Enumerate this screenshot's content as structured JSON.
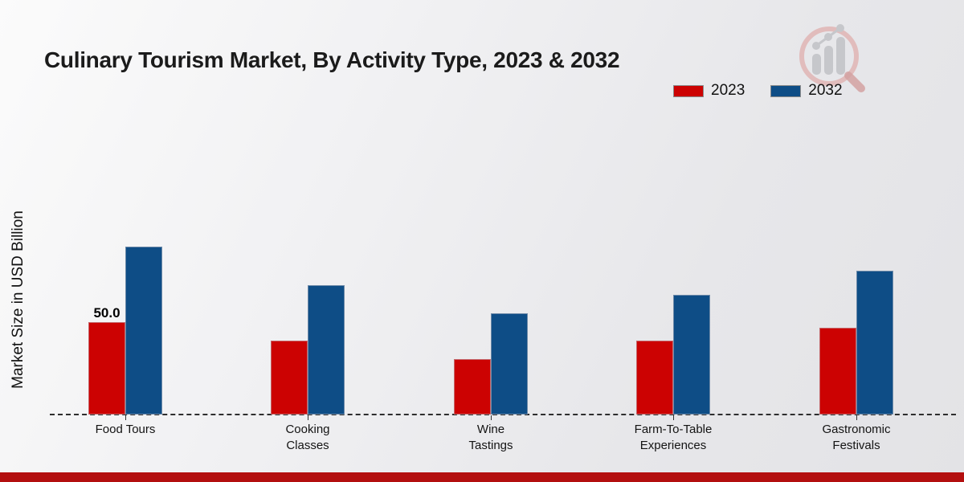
{
  "title": "Culinary Tourism Market, By Activity Type, 2023 & 2032",
  "colors": {
    "series_2023": "#cc0202",
    "series_2032": "#0e4d86",
    "footer_bar": "#b30f0f",
    "baseline": "#2e2e2e"
  },
  "chart_data": {
    "type": "bar",
    "title": "Culinary Tourism Market, By Activity Type, 2023 & 2032",
    "xlabel": "",
    "ylabel": "Market Size in USD Billion",
    "categories": [
      "Food Tours",
      "Cooking\nClasses",
      "Wine\nTastings",
      "Farm-To-Table\nExperiences",
      "Gastronomic\nFestivals"
    ],
    "series": [
      {
        "name": "2023",
        "color": "#cc0202",
        "values": [
          50.0,
          40,
          30,
          40,
          47
        ]
      },
      {
        "name": "2032",
        "color": "#0e4d86",
        "values": [
          91,
          70,
          55,
          65,
          78
        ]
      }
    ],
    "annotations": [
      {
        "series_index": 0,
        "category_index": 0,
        "text": "50.0"
      }
    ],
    "ylim": [
      0,
      100
    ],
    "grid": false,
    "baseline_style": "dashed",
    "legend_position": "top-right"
  }
}
